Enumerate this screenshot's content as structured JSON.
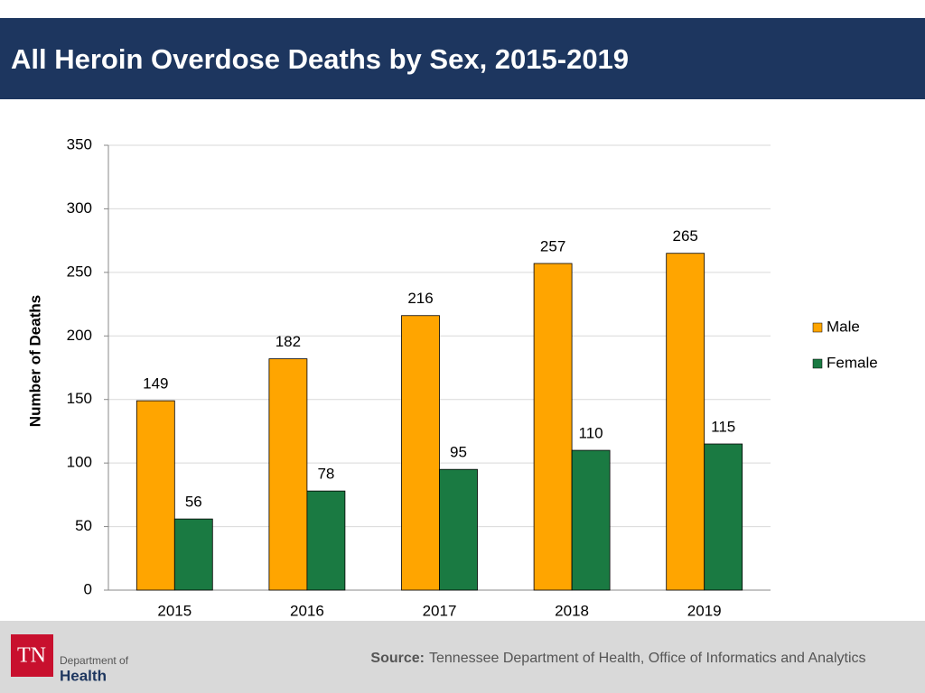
{
  "chart_data": {
    "type": "bar",
    "title": "All Heroin Overdose Deaths by Sex, 2015-2019",
    "y_label": "Number of Deaths",
    "categories": [
      "2015",
      "2016",
      "2017",
      "2018",
      "2019"
    ],
    "series": [
      {
        "name": "Male",
        "color": "#ffa500",
        "values": [
          149,
          182,
          216,
          257,
          265
        ]
      },
      {
        "name": "Female",
        "color": "#1a7a42",
        "values": [
          56,
          78,
          95,
          110,
          115
        ]
      }
    ],
    "ylim": [
      0,
      350
    ],
    "yticks": [
      0,
      50,
      100,
      150,
      200,
      250,
      300,
      350
    ],
    "grid": true,
    "legend": "right"
  },
  "footer": {
    "source_label": "Source:",
    "source_text": "Tennessee Department of Health, Office of Informatics and Analytics",
    "logo": {
      "mark": "TN",
      "line1": "Department of",
      "line2": "Health"
    }
  }
}
